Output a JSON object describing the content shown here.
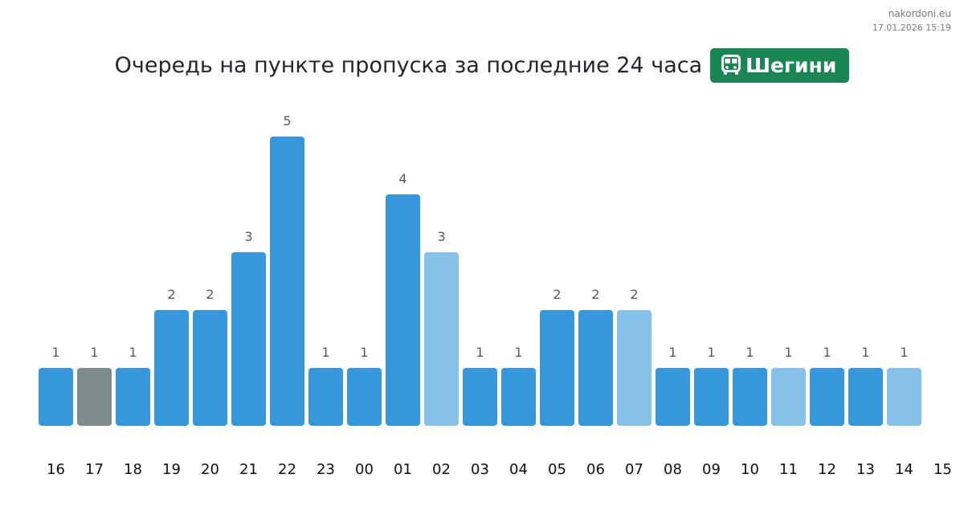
{
  "watermark": {
    "site": "nakordoni.eu",
    "timestamp": "17.01.2026 15:19"
  },
  "header": {
    "title": "Очередь на пункте пропуска за последние 24 часа",
    "badge": {
      "label": "Шегини",
      "icon": "bus-icon",
      "color": "#198754"
    }
  },
  "colors": {
    "normal": "#3698db",
    "light": "#85c1e9",
    "gray": "#7f8c8d"
  },
  "chart_data": {
    "type": "bar",
    "title": "Очередь на пункте пропуска за последние 24 часа",
    "xlabel": "",
    "ylabel": "",
    "grid": false,
    "legend": "none",
    "categories": [
      "16",
      "17",
      "18",
      "19",
      "20",
      "21",
      "22",
      "23",
      "00",
      "01",
      "02",
      "03",
      "04",
      "05",
      "06",
      "07",
      "08",
      "09",
      "10",
      "11",
      "12",
      "13",
      "14"
    ],
    "extra_tick": "15",
    "values": [
      1,
      1,
      1,
      2,
      2,
      3,
      5,
      1,
      1,
      4,
      3,
      1,
      1,
      2,
      2,
      2,
      1,
      1,
      1,
      1,
      1,
      1,
      1
    ],
    "bar_tones": [
      "normal",
      "gray",
      "normal",
      "normal",
      "normal",
      "normal",
      "normal",
      "normal",
      "normal",
      "normal",
      "light",
      "normal",
      "normal",
      "normal",
      "normal",
      "light",
      "normal",
      "normal",
      "normal",
      "light",
      "normal",
      "normal",
      "light"
    ],
    "ylim": [
      0,
      5
    ]
  }
}
